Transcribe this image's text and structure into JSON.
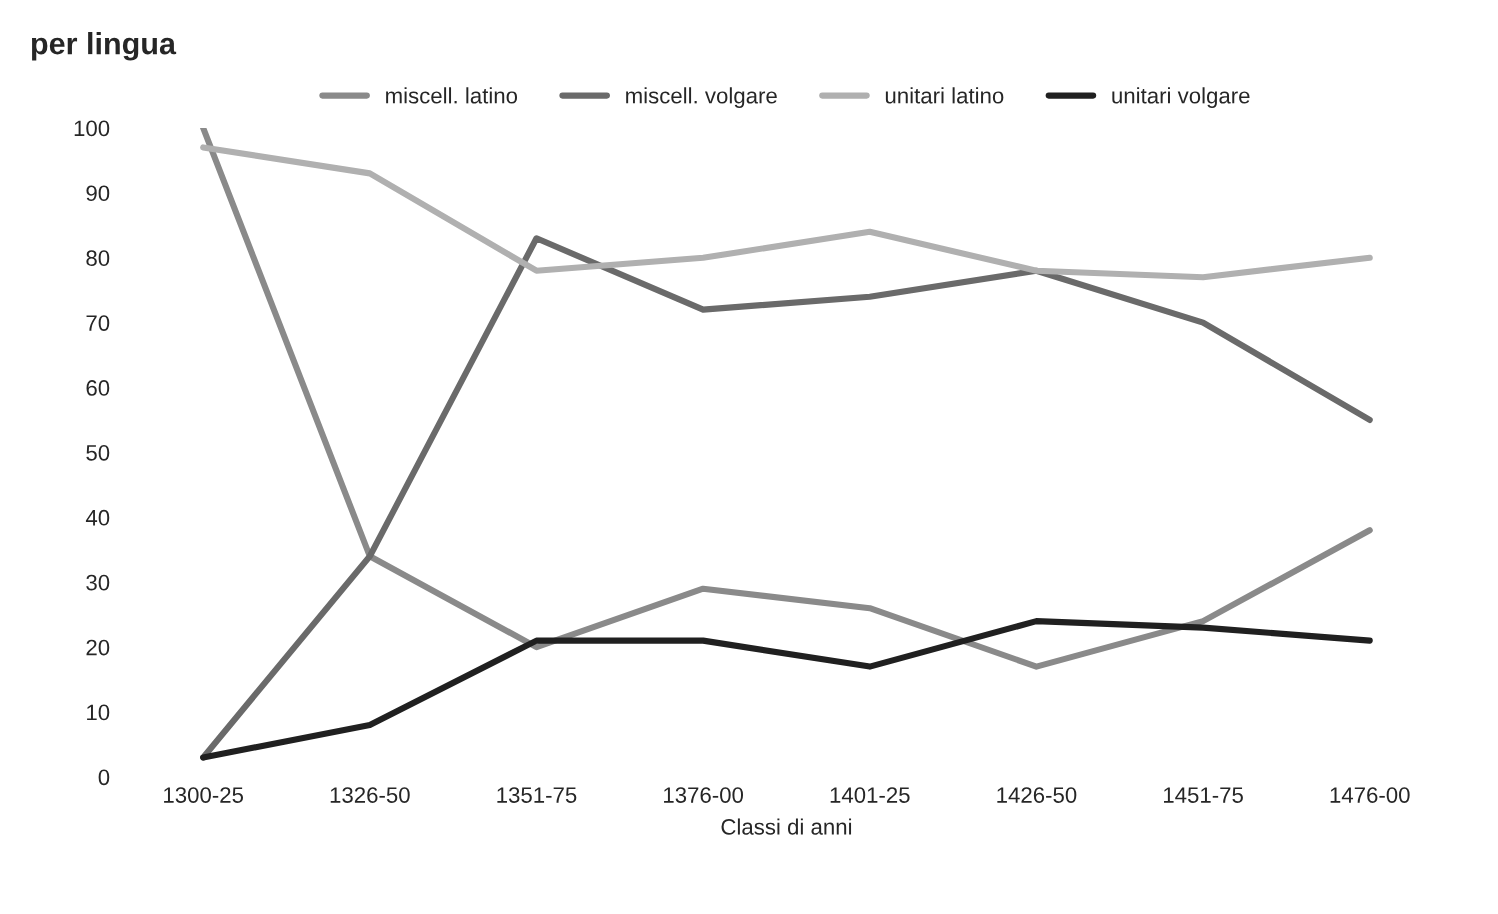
{
  "chart_data": {
    "type": "line",
    "title": "per lingua",
    "xlabel": "Classi di anni",
    "categories": [
      "1300-25",
      "1326-50",
      "1351-75",
      "1376-00",
      "1401-25",
      "1426-50",
      "1451-75",
      "1476-00"
    ],
    "series": [
      {
        "name": "miscell. latino",
        "color": "#8a8a8a",
        "values": [
          100,
          34,
          20,
          29,
          26,
          17,
          24,
          38
        ]
      },
      {
        "name": "miscell. volgare",
        "color": "#6a6a6a",
        "values": [
          3,
          34,
          83,
          72,
          74,
          78,
          70,
          55
        ]
      },
      {
        "name": "unitari latino",
        "color": "#b0b0b0",
        "values": [
          97,
          93,
          78,
          80,
          84,
          78,
          77,
          80
        ]
      },
      {
        "name": "unitari volgare",
        "color": "#202020",
        "values": [
          3,
          8,
          21,
          21,
          17,
          24,
          23,
          21
        ]
      }
    ],
    "ylim": [
      0,
      100
    ],
    "yticks": [
      0,
      10,
      20,
      30,
      40,
      50,
      60,
      70,
      80,
      90,
      100
    ],
    "legend": "top",
    "grid": false,
    "marker": "none",
    "line_style": "solid"
  }
}
